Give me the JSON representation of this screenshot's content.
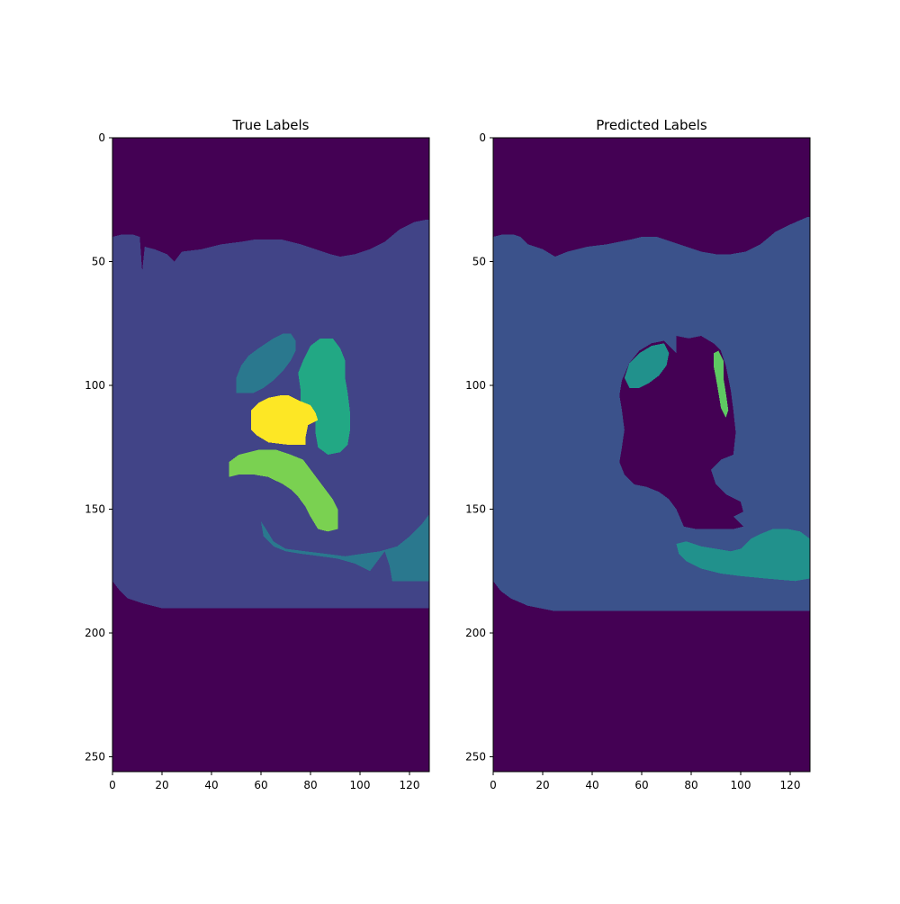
{
  "chart_data": [
    {
      "type": "heatmap",
      "title": "True Labels",
      "xlabel": "",
      "ylabel": "",
      "xlim": [
        0,
        128
      ],
      "ylim": [
        256,
        0
      ],
      "xticks": [
        0,
        20,
        40,
        60,
        80,
        100,
        120
      ],
      "yticks": [
        0,
        50,
        100,
        150,
        200,
        250
      ],
      "grid": false,
      "colormap": "viridis",
      "colors": {
        "background": "#440154",
        "body": "#414487",
        "organ_upper_left": "#2a788e",
        "organ_upper_right": "#22a884",
        "organ_center": "#fde725",
        "organ_curved": "#7ad151",
        "organ_lower": "#2a788e"
      },
      "regions": [
        {
          "label": "body",
          "color": "#414487",
          "points": [
            [
              0,
              40
            ],
            [
              4,
              39
            ],
            [
              8,
              39
            ],
            [
              11,
              40
            ],
            [
              12,
              54
            ],
            [
              13,
              44
            ],
            [
              17,
              45
            ],
            [
              22,
              47
            ],
            [
              25,
              50
            ],
            [
              28,
              46
            ],
            [
              36,
              45
            ],
            [
              44,
              43
            ],
            [
              52,
              42
            ],
            [
              58,
              41
            ],
            [
              68,
              41
            ],
            [
              76,
              43
            ],
            [
              82,
              45
            ],
            [
              88,
              47
            ],
            [
              92,
              48
            ],
            [
              98,
              47
            ],
            [
              104,
              45
            ],
            [
              110,
              42
            ],
            [
              116,
              37
            ],
            [
              122,
              34
            ],
            [
              127,
              33
            ],
            [
              128,
              33
            ],
            [
              128,
              190
            ],
            [
              20,
              190
            ],
            [
              12,
              188
            ],
            [
              6,
              186
            ],
            [
              3,
              183
            ],
            [
              0,
              179
            ]
          ]
        },
        {
          "label": "organ-upper-left",
          "color": "#2a788e",
          "points": [
            [
              50,
              103
            ],
            [
              50,
              97
            ],
            [
              52,
              92
            ],
            [
              55,
              88
            ],
            [
              59,
              85
            ],
            [
              62,
              83
            ],
            [
              65,
              81
            ],
            [
              69,
              79
            ],
            [
              72,
              79
            ],
            [
              74,
              82
            ],
            [
              74,
              86
            ],
            [
              72,
              90
            ],
            [
              69,
              94
            ],
            [
              65,
              98
            ],
            [
              61,
              101
            ],
            [
              57,
              103
            ]
          ]
        },
        {
          "label": "organ-upper-right",
          "color": "#22a884",
          "points": [
            [
              84,
              81
            ],
            [
              89,
              81
            ],
            [
              92,
              85
            ],
            [
              94,
              90
            ],
            [
              94,
              97
            ],
            [
              95,
              103
            ],
            [
              96,
              111
            ],
            [
              96,
              118
            ],
            [
              95,
              124
            ],
            [
              92,
              127
            ],
            [
              87,
              128
            ],
            [
              83,
              125
            ],
            [
              82,
              119
            ],
            [
              82,
              114
            ],
            [
              79,
              111
            ],
            [
              76,
              107
            ],
            [
              76,
              102
            ],
            [
              75,
              95
            ],
            [
              77,
              90
            ],
            [
              80,
              84
            ]
          ]
        },
        {
          "label": "organ-center",
          "color": "#fde725",
          "points": [
            [
              63,
              105
            ],
            [
              68,
              104
            ],
            [
              71,
              104
            ],
            [
              75,
              106
            ],
            [
              80,
              108
            ],
            [
              82,
              111
            ],
            [
              83,
              114
            ],
            [
              79,
              116
            ],
            [
              78,
              121
            ],
            [
              78,
              124
            ],
            [
              71,
              124
            ],
            [
              63,
              123
            ],
            [
              58,
              120
            ],
            [
              56,
              118
            ],
            [
              56,
              110
            ],
            [
              59,
              107
            ]
          ]
        },
        {
          "label": "organ-curved",
          "color": "#7ad151",
          "points": [
            [
              47,
              131
            ],
            [
              51,
              128
            ],
            [
              59,
              126
            ],
            [
              66,
              126
            ],
            [
              72,
              128
            ],
            [
              77,
              130
            ],
            [
              80,
              134
            ],
            [
              83,
              138
            ],
            [
              86,
              142
            ],
            [
              89,
              146
            ],
            [
              91,
              150
            ],
            [
              91,
              158
            ],
            [
              87,
              159
            ],
            [
              83,
              158
            ],
            [
              80,
              153
            ],
            [
              78,
              149
            ],
            [
              75,
              145
            ],
            [
              72,
              142
            ],
            [
              69,
              140
            ],
            [
              63,
              137
            ],
            [
              57,
              136
            ],
            [
              51,
              136
            ],
            [
              47,
              137
            ]
          ]
        },
        {
          "label": "organ-lower",
          "color": "#2a788e",
          "points": [
            [
              60,
              155
            ],
            [
              62,
              158
            ],
            [
              65,
              163
            ],
            [
              70,
              166
            ],
            [
              78,
              167
            ],
            [
              86,
              168
            ],
            [
              94,
              169
            ],
            [
              101,
              168
            ],
            [
              108,
              167
            ],
            [
              115,
              165
            ],
            [
              120,
              161
            ],
            [
              125,
              156
            ],
            [
              128,
              152
            ],
            [
              128,
              179
            ],
            [
              113,
              179
            ],
            [
              112,
              173
            ],
            [
              110,
              167
            ],
            [
              107,
              171
            ],
            [
              104,
              175
            ],
            [
              98,
              172
            ],
            [
              91,
              170
            ],
            [
              84,
              169
            ],
            [
              76,
              168
            ],
            [
              70,
              167
            ],
            [
              65,
              165
            ],
            [
              61,
              161
            ]
          ]
        }
      ]
    },
    {
      "type": "heatmap",
      "title": "Predicted Labels",
      "xlabel": "",
      "ylabel": "",
      "xlim": [
        0,
        128
      ],
      "ylim": [
        256,
        0
      ],
      "xticks": [
        0,
        20,
        40,
        60,
        80,
        100,
        120
      ],
      "yticks": [
        0,
        50,
        100,
        150,
        200,
        250
      ],
      "grid": false,
      "colormap": "viridis",
      "colors": {
        "background": "#440154",
        "body": "#3b528b",
        "organ_upper_left": "#21918c",
        "organ_lower": "#21918c",
        "organ_small": "#5ec962"
      },
      "regions": [
        {
          "label": "body",
          "color": "#3b528b",
          "points": [
            [
              0,
              40
            ],
            [
              4,
              39
            ],
            [
              8,
              39
            ],
            [
              11,
              40
            ],
            [
              14,
              43
            ],
            [
              20,
              45
            ],
            [
              25,
              48
            ],
            [
              30,
              46
            ],
            [
              38,
              44
            ],
            [
              46,
              43
            ],
            [
              56,
              41
            ],
            [
              60,
              40
            ],
            [
              66,
              40
            ],
            [
              72,
              42
            ],
            [
              78,
              44
            ],
            [
              84,
              46
            ],
            [
              90,
              47
            ],
            [
              96,
              47
            ],
            [
              102,
              46
            ],
            [
              108,
              43
            ],
            [
              114,
              38
            ],
            [
              120,
              35
            ],
            [
              127,
              32
            ],
            [
              128,
              32
            ],
            [
              128,
              191
            ],
            [
              24,
              191
            ],
            [
              14,
              189
            ],
            [
              7,
              186
            ],
            [
              3,
              183
            ],
            [
              0,
              179
            ]
          ]
        },
        {
          "label": "background-hole",
          "color": "#440154",
          "points": [
            [
              52,
              98
            ],
            [
              55,
              91
            ],
            [
              59,
              86
            ],
            [
              64,
              83
            ],
            [
              69,
              82
            ],
            [
              72,
              85
            ],
            [
              74,
              87
            ],
            [
              74,
              80
            ],
            [
              79,
              81
            ],
            [
              84,
              80
            ],
            [
              89,
              83
            ],
            [
              92,
              86
            ],
            [
              94,
              92
            ],
            [
              96,
              102
            ],
            [
              97,
              110
            ],
            [
              98,
              119
            ],
            [
              97,
              128
            ],
            [
              92,
              130
            ],
            [
              88,
              134
            ],
            [
              90,
              140
            ],
            [
              94,
              144
            ],
            [
              100,
              147
            ],
            [
              101,
              151
            ],
            [
              97,
              153
            ],
            [
              101,
              157
            ],
            [
              97,
              158
            ],
            [
              90,
              158
            ],
            [
              82,
              158
            ],
            [
              77,
              157
            ],
            [
              74,
              150
            ],
            [
              71,
              146
            ],
            [
              67,
              143
            ],
            [
              62,
              141
            ],
            [
              57,
              140
            ],
            [
              53,
              136
            ],
            [
              51,
              131
            ],
            [
              52,
              125
            ],
            [
              53,
              118
            ],
            [
              52,
              110
            ],
            [
              51,
              104
            ]
          ]
        },
        {
          "label": "organ-upper-left",
          "color": "#21918c",
          "points": [
            [
              55,
              101
            ],
            [
              53,
              97
            ],
            [
              55,
              91
            ],
            [
              59,
              87
            ],
            [
              64,
              84
            ],
            [
              69,
              83
            ],
            [
              71,
              87
            ],
            [
              70,
              92
            ],
            [
              67,
              96
            ],
            [
              63,
              99
            ],
            [
              59,
              101
            ]
          ]
        },
        {
          "label": "organ-small",
          "color": "#5ec962",
          "points": [
            [
              89,
              87
            ],
            [
              91,
              86
            ],
            [
              93,
              90
            ],
            [
              93,
              97
            ],
            [
              94,
              103
            ],
            [
              95,
              110
            ],
            [
              94,
              113
            ],
            [
              92,
              109
            ],
            [
              91,
              103
            ],
            [
              90,
              97
            ],
            [
              89,
              92
            ]
          ]
        },
        {
          "label": "organ-lower",
          "color": "#21918c",
          "points": [
            [
              74,
              164
            ],
            [
              78,
              163
            ],
            [
              84,
              165
            ],
            [
              90,
              166
            ],
            [
              96,
              167
            ],
            [
              100,
              166
            ],
            [
              104,
              162
            ],
            [
              108,
              160
            ],
            [
              113,
              158
            ],
            [
              119,
              158
            ],
            [
              124,
              159
            ],
            [
              128,
              162
            ],
            [
              128,
              178
            ],
            [
              122,
              179
            ],
            [
              110,
              178
            ],
            [
              100,
              177
            ],
            [
              92,
              176
            ],
            [
              84,
              174
            ],
            [
              78,
              171
            ],
            [
              75,
              168
            ]
          ]
        }
      ]
    }
  ]
}
